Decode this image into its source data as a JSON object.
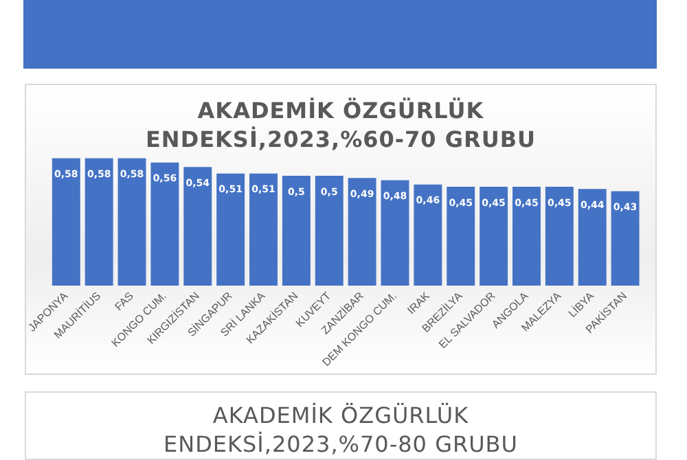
{
  "chart_data": [
    {
      "type": "bar",
      "title": "AKADEMİK ÖZGÜRLÜK ENDEKSİ,2023,%60-70 GRUBU",
      "categories": [
        "JAPONYA",
        "MAURİTİUS",
        "FAS",
        "KONGO CUM.",
        "KIRGIZİSTAN",
        "SİNGAPUR",
        "SRİ LANKA",
        "KAZAKİSTAN",
        "KUVEYT",
        "ZANZİBAR",
        "DEM KONGO CUM.",
        "IRAK",
        "BREZİLYA",
        "EL SALVADOR",
        "ANGOLA",
        "MALEZYA",
        "LİBYA",
        "PAKİSTAN"
      ],
      "values": [
        0.58,
        0.58,
        0.58,
        0.56,
        0.54,
        0.51,
        0.51,
        0.5,
        0.5,
        0.49,
        0.48,
        0.46,
        0.45,
        0.45,
        0.45,
        0.45,
        0.44,
        0.43
      ],
      "value_labels": [
        "0,58",
        "0,58",
        "0,58",
        "0,56",
        "0,54",
        "0,51",
        "0,51",
        "0,5",
        "0,5",
        "0,49",
        "0,48",
        "0,46",
        "0,45",
        "0,45",
        "0,45",
        "0,45",
        "0,44",
        "0,43"
      ],
      "color": "#4472c4",
      "grid": false,
      "legend": false,
      "tick_labels": "x"
    },
    {
      "type": "other",
      "title": "AKADEMİK ÖZGÜRLÜK ENDEKSİ,2023,%70-80 GRUBU"
    }
  ]
}
